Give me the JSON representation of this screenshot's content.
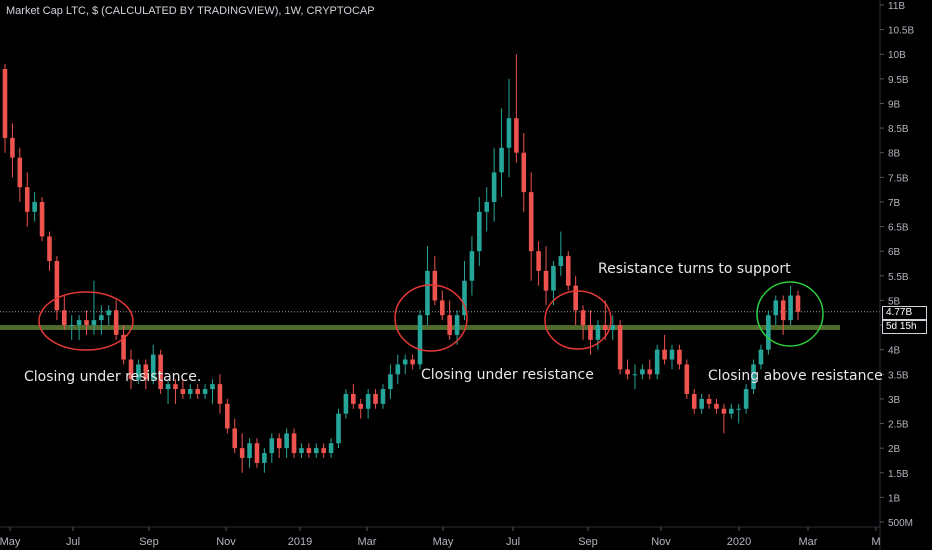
{
  "title": "Market Cap LTC, $ (CALCULATED BY TRADINGVIEW), 1W, CRYPTOCAP",
  "price_tag": "4.77B",
  "countdown_tag": "5d 15h",
  "annotations": {
    "left": "Closing under resistance.",
    "middle": "Closing under resistance",
    "right_top": "Resistance turns to support",
    "right": "Closing above resistance"
  },
  "colors": {
    "background": "#000000",
    "up": "#26a69a",
    "down": "#ef5350",
    "zone": "#6b8f3c",
    "circle_red": "#e53935",
    "circle_green": "#2ecc40"
  },
  "chart_data": {
    "type": "candlestick",
    "ylim": [
      0.5,
      11
    ],
    "y_ticks": [
      "11B",
      "10.5B",
      "10B",
      "9.5B",
      "9B",
      "8.5B",
      "8B",
      "7.5B",
      "7B",
      "6.5B",
      "6B",
      "5.5B",
      "5B",
      "4.5B",
      "4B",
      "3.5B",
      "3B",
      "2.5B",
      "2B",
      "1.5B",
      "1B",
      "500M"
    ],
    "x_ticks": [
      "May",
      "Jul",
      "Sep",
      "Nov",
      "2019",
      "Mar",
      "May",
      "Jul",
      "Sep",
      "Nov",
      "2020",
      "Mar",
      "M"
    ],
    "support_zone": [
      4.4,
      4.5
    ],
    "last_price": 4.77,
    "candles": [
      [
        9.7,
        9.8,
        8.0,
        8.3
      ],
      [
        8.3,
        8.6,
        7.5,
        7.9
      ],
      [
        7.9,
        8.1,
        7.0,
        7.3
      ],
      [
        7.3,
        7.6,
        6.5,
        6.8
      ],
      [
        6.8,
        7.2,
        6.6,
        7.0
      ],
      [
        7.0,
        7.1,
        6.2,
        6.3
      ],
      [
        6.3,
        6.4,
        5.6,
        5.8
      ],
      [
        5.8,
        5.9,
        4.6,
        4.8
      ],
      [
        4.8,
        5.1,
        4.4,
        4.5
      ],
      [
        4.5,
        4.7,
        4.2,
        4.5
      ],
      [
        4.5,
        4.7,
        4.2,
        4.6
      ],
      [
        4.6,
        4.8,
        4.3,
        4.5
      ],
      [
        4.5,
        5.4,
        4.3,
        4.6
      ],
      [
        4.6,
        4.9,
        4.3,
        4.7
      ],
      [
        4.7,
        4.9,
        4.5,
        4.8
      ],
      [
        4.8,
        5.0,
        4.2,
        4.3
      ],
      [
        4.3,
        4.5,
        3.7,
        3.8
      ],
      [
        3.8,
        4.0,
        3.2,
        3.4
      ],
      [
        3.4,
        3.8,
        3.3,
        3.7
      ],
      [
        3.7,
        3.8,
        3.2,
        3.4
      ],
      [
        3.4,
        4.1,
        3.3,
        3.9
      ],
      [
        3.9,
        4.0,
        3.1,
        3.2
      ],
      [
        3.2,
        3.4,
        2.9,
        3.3
      ],
      [
        3.3,
        3.4,
        2.9,
        3.2
      ],
      [
        3.2,
        3.4,
        3.0,
        3.1
      ],
      [
        3.1,
        3.3,
        3.0,
        3.2
      ],
      [
        3.2,
        3.3,
        3.0,
        3.1
      ],
      [
        3.1,
        3.3,
        3.0,
        3.2
      ],
      [
        3.2,
        3.4,
        2.9,
        3.3
      ],
      [
        3.3,
        3.5,
        2.7,
        2.9
      ],
      [
        2.9,
        3.0,
        2.3,
        2.4
      ],
      [
        2.4,
        2.6,
        1.9,
        2.0
      ],
      [
        2.0,
        2.3,
        1.5,
        1.8
      ],
      [
        1.8,
        2.2,
        1.6,
        2.1
      ],
      [
        2.1,
        2.2,
        1.6,
        1.7
      ],
      [
        1.7,
        2.0,
        1.5,
        1.9
      ],
      [
        1.9,
        2.3,
        1.7,
        2.2
      ],
      [
        2.2,
        2.3,
        1.8,
        2.0
      ],
      [
        2.0,
        2.4,
        1.8,
        2.3
      ],
      [
        2.3,
        2.4,
        1.8,
        1.9
      ],
      [
        1.9,
        2.1,
        1.8,
        2.0
      ],
      [
        2.0,
        2.1,
        1.8,
        1.9
      ],
      [
        1.9,
        2.1,
        1.8,
        2.0
      ],
      [
        2.0,
        2.1,
        1.8,
        1.9
      ],
      [
        1.9,
        2.2,
        1.8,
        2.1
      ],
      [
        2.1,
        2.8,
        2.0,
        2.7
      ],
      [
        2.7,
        3.2,
        2.6,
        3.1
      ],
      [
        3.1,
        3.3,
        2.8,
        2.9
      ],
      [
        2.9,
        3.0,
        2.6,
        2.8
      ],
      [
        2.8,
        3.2,
        2.6,
        3.1
      ],
      [
        3.1,
        3.2,
        2.8,
        2.9
      ],
      [
        2.9,
        3.3,
        2.8,
        3.2
      ],
      [
        3.2,
        3.7,
        3.0,
        3.5
      ],
      [
        3.5,
        3.9,
        3.3,
        3.7
      ],
      [
        3.7,
        3.9,
        3.5,
        3.8
      ],
      [
        3.8,
        3.9,
        3.6,
        3.7
      ],
      [
        3.7,
        4.8,
        3.6,
        4.7
      ],
      [
        4.7,
        6.1,
        4.5,
        5.6
      ],
      [
        5.6,
        5.9,
        4.9,
        5.0
      ],
      [
        5.0,
        5.2,
        4.6,
        4.7
      ],
      [
        4.7,
        5.0,
        4.2,
        4.3
      ],
      [
        4.3,
        4.8,
        4.1,
        4.7
      ],
      [
        4.7,
        5.8,
        4.6,
        5.4
      ],
      [
        5.4,
        6.3,
        5.1,
        6.0
      ],
      [
        6.0,
        7.1,
        5.7,
        6.8
      ],
      [
        6.8,
        7.3,
        6.4,
        7.0
      ],
      [
        7.0,
        8.1,
        6.6,
        7.6
      ],
      [
        7.6,
        8.9,
        7.1,
        8.1
      ],
      [
        8.1,
        9.5,
        7.5,
        8.7
      ],
      [
        8.7,
        10.0,
        7.8,
        8.0
      ],
      [
        8.0,
        8.4,
        6.8,
        7.2
      ],
      [
        7.2,
        7.6,
        5.4,
        6.0
      ],
      [
        6.0,
        6.2,
        5.3,
        5.6
      ],
      [
        5.6,
        6.1,
        4.9,
        5.2
      ],
      [
        5.2,
        5.8,
        4.9,
        5.7
      ],
      [
        5.7,
        6.4,
        5.5,
        5.9
      ],
      [
        5.9,
        6.0,
        5.2,
        5.3
      ],
      [
        5.3,
        5.5,
        4.5,
        4.8
      ],
      [
        4.8,
        4.9,
        4.2,
        4.5
      ],
      [
        4.5,
        4.8,
        3.9,
        4.2
      ],
      [
        4.2,
        4.6,
        4.0,
        4.5
      ],
      [
        4.5,
        5.0,
        4.2,
        4.4
      ],
      [
        4.4,
        4.7,
        4.2,
        4.5
      ],
      [
        4.5,
        4.6,
        3.5,
        3.6
      ],
      [
        3.6,
        3.8,
        3.4,
        3.5
      ],
      [
        3.5,
        3.7,
        3.2,
        3.5
      ],
      [
        3.5,
        3.7,
        3.4,
        3.6
      ],
      [
        3.6,
        3.8,
        3.4,
        3.5
      ],
      [
        3.5,
        4.1,
        3.4,
        4.0
      ],
      [
        4.0,
        4.3,
        3.7,
        3.8
      ],
      [
        3.8,
        4.1,
        3.6,
        4.0
      ],
      [
        4.0,
        4.1,
        3.6,
        3.7
      ],
      [
        3.7,
        3.8,
        3.0,
        3.1
      ],
      [
        3.1,
        3.2,
        2.7,
        2.8
      ],
      [
        2.8,
        3.1,
        2.7,
        3.0
      ],
      [
        3.0,
        3.1,
        2.8,
        2.9
      ],
      [
        2.9,
        3.0,
        2.7,
        2.8
      ],
      [
        2.8,
        2.9,
        2.3,
        2.7
      ],
      [
        2.7,
        2.9,
        2.6,
        2.8
      ],
      [
        2.8,
        2.9,
        2.5,
        2.8
      ],
      [
        2.8,
        3.3,
        2.7,
        3.2
      ],
      [
        3.2,
        3.8,
        3.1,
        3.7
      ],
      [
        3.7,
        4.1,
        3.6,
        4.0
      ],
      [
        4.0,
        4.8,
        3.9,
        4.7
      ],
      [
        4.7,
        5.1,
        4.5,
        5.0
      ],
      [
        5.0,
        5.1,
        4.3,
        4.6
      ],
      [
        4.6,
        5.3,
        4.5,
        5.1
      ],
      [
        5.1,
        5.2,
        4.6,
        4.77
      ]
    ]
  }
}
